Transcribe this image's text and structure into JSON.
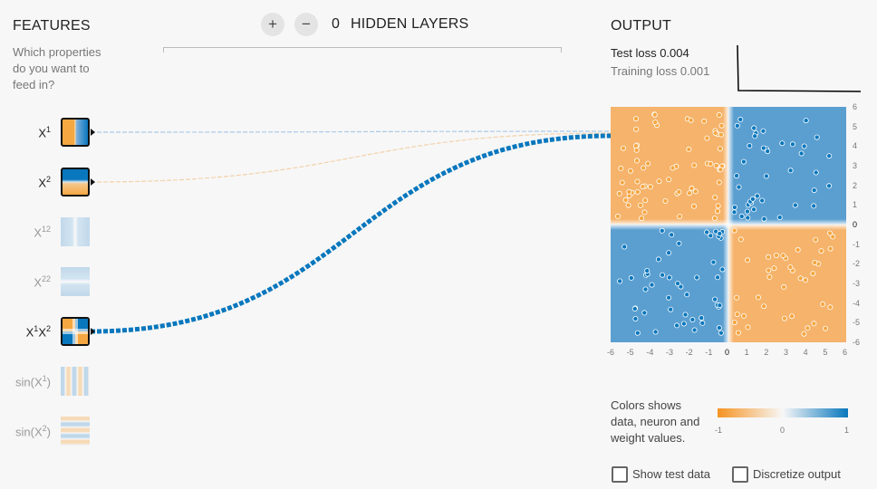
{
  "features": {
    "title": "FEATURES",
    "subtitle_lines": [
      "Which properties",
      "do you want to",
      "feed in?"
    ],
    "items": [
      {
        "base": "X",
        "sup": "1",
        "active": true
      },
      {
        "base": "X",
        "sup": "2",
        "active": true
      },
      {
        "base": "X",
        "sup": "12",
        "active": false
      },
      {
        "base": "X",
        "sup": "22",
        "active": false
      },
      {
        "base": "X",
        "sup": "1",
        "base2": "X",
        "sup2": "2",
        "active": true
      },
      {
        "base": "sin(X",
        "sup": "1",
        "tail": ")",
        "active": false
      },
      {
        "base": "sin(X",
        "sup": "2",
        "tail": ")",
        "active": false
      }
    ]
  },
  "layers": {
    "add_label": "+",
    "remove_label": "−",
    "count": "0",
    "label": "HIDDEN LAYERS"
  },
  "output": {
    "title": "OUTPUT",
    "test_loss_label": "Test loss",
    "test_loss_value": "0.004",
    "training_loss_label": "Training loss",
    "training_loss_value": "0.001",
    "x_ticks": [
      "-6",
      "-5",
      "-4",
      "-3",
      "-2",
      "-1",
      "0",
      "1",
      "2",
      "3",
      "4",
      "5",
      "6"
    ],
    "y_ticks": [
      "6",
      "5",
      "4",
      "3",
      "2",
      "1",
      "0",
      "-1",
      "-2",
      "-3",
      "-4",
      "-5",
      "-6"
    ]
  },
  "legend": {
    "text_lines": [
      "Colors shows",
      "data, neuron and",
      "weight values."
    ],
    "ticks": [
      "-1",
      "0",
      "1"
    ]
  },
  "options": {
    "show_test_data": "Show test data",
    "discretize_output": "Discretize output"
  },
  "colors": {
    "orange": "#f5a742",
    "blue": "#0877bd",
    "light_orange": "#f5b36b",
    "light_blue": "#5b9fd1"
  }
}
